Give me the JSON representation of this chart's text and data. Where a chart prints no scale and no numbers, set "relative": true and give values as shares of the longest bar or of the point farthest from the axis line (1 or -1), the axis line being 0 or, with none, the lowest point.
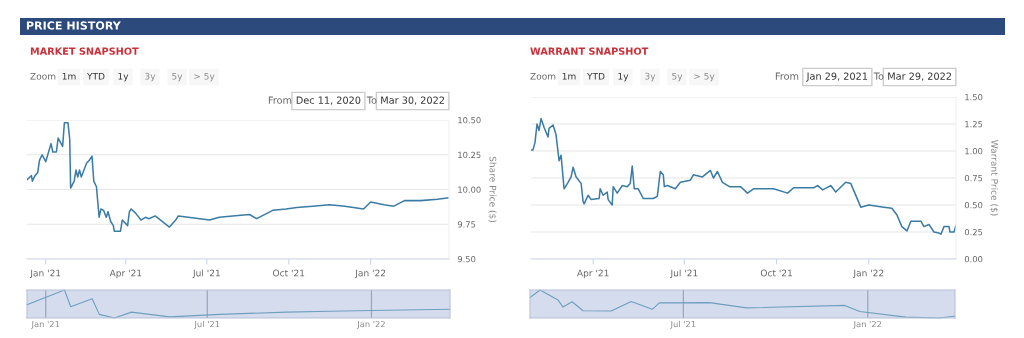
{
  "chart_data": [
    {
      "type": "other",
      "title": "PRICE HISTORY"
    },
    {
      "type": "line",
      "title": "MARKET SNAPSHOT",
      "ylabel": "Share Price ($)",
      "grid": "y",
      "marker": "none",
      "line_style": "solid",
      "annotations": [
        "Zoom",
        "1m",
        "YTD",
        "1y",
        "3y",
        "5y",
        "> 5y",
        "From",
        "Dec 11, 2020",
        "To",
        "Mar 30, 2022"
      ],
      "xlim": [
        "2020-12-11",
        "2022-03-30"
      ],
      "xticks": [
        {
          "value": "2021-01-01",
          "label": "Jan '21"
        },
        {
          "value": "2021-04-01",
          "label": "Apr '21"
        },
        {
          "value": "2021-07-01",
          "label": "Jul '21"
        },
        {
          "value": "2021-10-01",
          "label": "Oct '21"
        },
        {
          "value": "2022-01-01",
          "label": "Jan '22"
        }
      ],
      "ylim": [
        9.5,
        10.5
      ],
      "yticks": [
        {
          "value": 9.5,
          "label": "9.50"
        },
        {
          "value": 9.75,
          "label": "9.75"
        },
        {
          "value": 10.0,
          "label": "10.00"
        },
        {
          "value": 10.25,
          "label": "10.25"
        },
        {
          "value": 10.5,
          "label": "10.50"
        }
      ],
      "series": [
        {
          "color": "#3a7ca5",
          "x": [
            "2020-12-11",
            "2020-12-16",
            "2020-12-17",
            "2020-12-20",
            "2020-12-23",
            "2020-12-25",
            "2020-12-28",
            "2021-01-01",
            "2021-01-07",
            "2021-01-09",
            "2021-01-13",
            "2021-01-15",
            "2021-01-20",
            "2021-01-22",
            "2021-01-26",
            "2021-01-28",
            "2021-01-29",
            "2021-02-02",
            "2021-02-04",
            "2021-02-06",
            "2021-02-08",
            "2021-02-10",
            "2021-02-16",
            "2021-02-19",
            "2021-02-22",
            "2021-02-24",
            "2021-02-27",
            "2021-03-02",
            "2021-03-04",
            "2021-03-07",
            "2021-03-10",
            "2021-03-12",
            "2021-03-15",
            "2021-03-18",
            "2021-03-19",
            "2021-03-26",
            "2021-03-28",
            "2021-04-03",
            "2021-04-05",
            "2021-04-07",
            "2021-04-12",
            "2021-04-18",
            "2021-04-23",
            "2021-04-27",
            "2021-05-04",
            "2021-05-10",
            "2021-05-20",
            "2021-05-27",
            "2021-05-30",
            "2021-06-10",
            "2021-07-04",
            "2021-07-15",
            "2021-07-30",
            "2021-08-18",
            "2021-08-26",
            "2021-09-13",
            "2021-09-28",
            "2021-10-10",
            "2021-10-28",
            "2021-11-16",
            "2021-12-03",
            "2021-12-24",
            "2022-01-01",
            "2022-01-16",
            "2022-01-27",
            "2022-02-08",
            "2022-02-26",
            "2022-03-17",
            "2022-03-30"
          ],
          "values": [
            10.07,
            10.1,
            10.06,
            10.1,
            10.12,
            10.21,
            10.25,
            10.2,
            10.33,
            10.27,
            10.27,
            10.37,
            10.31,
            10.48,
            10.48,
            10.36,
            10.01,
            10.06,
            10.14,
            10.09,
            10.14,
            10.09,
            10.19,
            10.21,
            10.24,
            10.06,
            10.02,
            9.8,
            9.86,
            9.85,
            9.8,
            9.84,
            9.77,
            9.74,
            9.7,
            9.7,
            9.78,
            9.74,
            9.84,
            9.86,
            9.83,
            9.78,
            9.8,
            9.79,
            9.81,
            9.78,
            9.73,
            9.78,
            9.81,
            9.8,
            9.78,
            9.8,
            9.81,
            9.82,
            9.79,
            9.85,
            9.86,
            9.87,
            9.88,
            9.89,
            9.88,
            9.86,
            9.91,
            9.89,
            9.88,
            9.92,
            9.92,
            9.93,
            9.94
          ]
        }
      ]
    },
    {
      "type": "line",
      "relative": true,
      "grid": "x",
      "marker": "none",
      "line_style": "solid",
      "tick_labels": "x",
      "xlim": [
        "2020-12-11",
        "2022-03-30"
      ],
      "xticks": [
        {
          "value": "2021-01-01",
          "label": "Jan '21"
        },
        {
          "value": "2021-07-01",
          "label": "Jul '21"
        },
        {
          "value": "2022-01-01",
          "label": "Jan '22"
        }
      ],
      "series": [
        {
          "color": "#6f9fc0",
          "x": [
            "2020-12-11",
            "2020-12-25",
            "2021-01-07",
            "2021-01-22",
            "2021-01-29",
            "2021-02-22",
            "2021-03-02",
            "2021-03-19",
            "2021-04-07",
            "2021-05-20",
            "2021-07-15",
            "2021-09-28",
            "2021-11-16",
            "2022-01-01",
            "2022-03-30"
          ],
          "values": [
            0.47,
            0.65,
            0.81,
            1,
            0.4,
            0.69,
            0.13,
            0,
            0.21,
            0.04,
            0.13,
            0.21,
            0.24,
            0.27,
            0.31
          ]
        }
      ]
    },
    {
      "type": "line",
      "title": "WARRANT SNAPSHOT",
      "ylabel": "Warrant Price ($)",
      "grid": "y",
      "marker": "none",
      "line_style": "solid",
      "annotations": [
        "Zoom",
        "1m",
        "YTD",
        "1y",
        "3y",
        "5y",
        "> 5y",
        "From",
        "Jan 29, 2021",
        "To",
        "Mar 29, 2022"
      ],
      "xlim": [
        "2021-01-29",
        "2022-03-29"
      ],
      "xticks": [
        {
          "value": "2021-04-01",
          "label": "Apr '21"
        },
        {
          "value": "2021-07-01",
          "label": "Jul '21"
        },
        {
          "value": "2021-10-01",
          "label": "Oct '21"
        },
        {
          "value": "2022-01-01",
          "label": "Jan '22"
        }
      ],
      "ylim": [
        0,
        1.5
      ],
      "yticks": [
        {
          "value": 0,
          "label": "0.00"
        },
        {
          "value": 0.25,
          "label": "0.25"
        },
        {
          "value": 0.5,
          "label": "0.50"
        },
        {
          "value": 0.75,
          "label": "0.75"
        },
        {
          "value": 1.0,
          "label": "1.00"
        },
        {
          "value": 1.25,
          "label": "1.25"
        },
        {
          "value": 1.5,
          "label": "1.50"
        }
      ],
      "series": [
        {
          "color": "#3a7ca5",
          "x": [
            "2021-01-29",
            "2021-01-31",
            "2021-02-02",
            "2021-02-04",
            "2021-02-06",
            "2021-02-08",
            "2021-02-11",
            "2021-02-15",
            "2021-02-16",
            "2021-02-20",
            "2021-02-23",
            "2021-02-26",
            "2021-02-28",
            "2021-03-03",
            "2021-03-07",
            "2021-03-10",
            "2021-03-12",
            "2021-03-15",
            "2021-03-20",
            "2021-03-22",
            "2021-03-23",
            "2021-03-27",
            "2021-03-30",
            "2021-04-07",
            "2021-04-08",
            "2021-04-11",
            "2021-04-15",
            "2021-04-16",
            "2021-04-20",
            "2021-04-21",
            "2021-04-25",
            "2021-04-30",
            "2021-05-05",
            "2021-05-08",
            "2021-05-10",
            "2021-05-12",
            "2021-05-16",
            "2021-05-21",
            "2021-05-31",
            "2021-06-04",
            "2021-06-07",
            "2021-06-10",
            "2021-06-11",
            "2021-06-14",
            "2021-06-22",
            "2021-06-27",
            "2021-07-07",
            "2021-07-10",
            "2021-07-19",
            "2021-07-27",
            "2021-07-30",
            "2021-08-03",
            "2021-08-08",
            "2021-08-15",
            "2021-08-26",
            "2021-09-02",
            "2021-09-08",
            "2021-09-28",
            "2021-10-12",
            "2021-10-18",
            "2021-11-07",
            "2021-11-11",
            "2021-11-16",
            "2021-11-24",
            "2021-11-29",
            "2021-12-09",
            "2021-12-14",
            "2021-12-24",
            "2022-01-01",
            "2022-01-16",
            "2022-01-24",
            "2022-01-29",
            "2022-02-03",
            "2022-02-08",
            "2022-02-12",
            "2022-02-22",
            "2022-02-25",
            "2022-03-02",
            "2022-03-07",
            "2022-03-12",
            "2022-03-14",
            "2022-03-17",
            "2022-03-22",
            "2022-03-23",
            "2022-03-27",
            "2022-03-29"
          ],
          "values": [
            1.01,
            1.01,
            1.08,
            1.25,
            1.19,
            1.3,
            1.22,
            1.13,
            1.21,
            1.24,
            1.15,
            0.91,
            0.96,
            0.65,
            0.71,
            0.76,
            0.85,
            0.76,
            0.7,
            0.53,
            0.51,
            0.59,
            0.55,
            0.56,
            0.65,
            0.59,
            0.62,
            0.55,
            0.5,
            0.67,
            0.61,
            0.68,
            0.67,
            0.7,
            0.86,
            0.65,
            0.65,
            0.56,
            0.56,
            0.58,
            0.81,
            0.78,
            0.67,
            0.68,
            0.65,
            0.71,
            0.73,
            0.78,
            0.76,
            0.82,
            0.75,
            0.81,
            0.71,
            0.67,
            0.67,
            0.61,
            0.65,
            0.65,
            0.61,
            0.66,
            0.66,
            0.68,
            0.64,
            0.68,
            0.62,
            0.71,
            0.7,
            0.48,
            0.5,
            0.48,
            0.47,
            0.41,
            0.3,
            0.26,
            0.35,
            0.35,
            0.3,
            0.32,
            0.25,
            0.24,
            0.23,
            0.3,
            0.3,
            0.25,
            0.25,
            0.31
          ]
        }
      ]
    },
    {
      "type": "line",
      "relative": true,
      "grid": "x",
      "marker": "none",
      "line_style": "solid",
      "tick_labels": "x",
      "xlim": [
        "2021-01-29",
        "2022-03-29"
      ],
      "xticks": [
        {
          "value": "2021-07-01",
          "label": "Jul '21"
        },
        {
          "value": "2022-01-01",
          "label": "Jan '22"
        }
      ],
      "series": [
        {
          "color": "#6f9fc0",
          "x": [
            "2021-01-29",
            "2021-02-08",
            "2021-02-26",
            "2021-03-03",
            "2021-03-12",
            "2021-03-23",
            "2021-04-20",
            "2021-05-10",
            "2021-05-31",
            "2021-06-07",
            "2021-07-27",
            "2021-09-02",
            "2021-12-09",
            "2021-12-24",
            "2022-02-08",
            "2022-03-14",
            "2022-03-29"
          ],
          "values": [
            0.73,
            1,
            0.64,
            0.39,
            0.58,
            0.26,
            0.25,
            0.59,
            0.31,
            0.54,
            0.55,
            0.36,
            0.45,
            0.23,
            0.03,
            0,
            0.07
          ]
        }
      ]
    }
  ]
}
